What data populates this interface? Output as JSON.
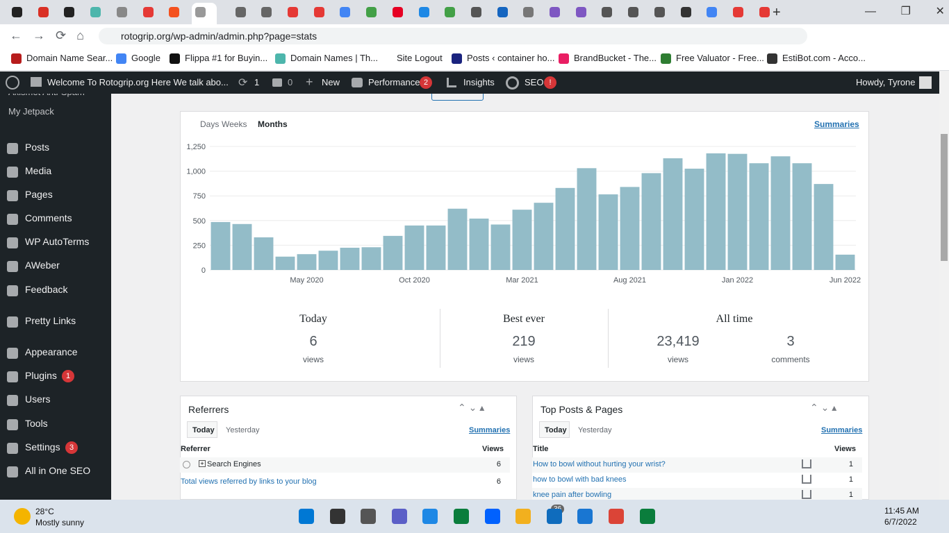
{
  "browser": {
    "url": "rotogrip.org/wp-admin/admin.php?page=stats",
    "bookmarks": [
      "Domain Name Sear...",
      "Google",
      "Flippa #1 for Buyin...",
      "Domain Names | Th...",
      "Site Logout",
      "Posts ‹ container ho...",
      "BrandBucket - The...",
      "Free Valuator - Free...",
      "EstiBot.com - Acco..."
    ]
  },
  "admin_bar": {
    "site": "Welcome To Rotogrip.org Here We talk abo...",
    "updates": "1",
    "comments": "0",
    "new": "New",
    "performance": "Performance",
    "performance_badge": "2",
    "insights": "Insights",
    "seo": "SEO",
    "seo_badge": "!",
    "user": "Howdy, Tyrone"
  },
  "sidebar": {
    "items": [
      {
        "label": "Akismet Anti-Spam"
      },
      {
        "label": "My Jetpack"
      },
      {
        "label": "Posts"
      },
      {
        "label": "Media"
      },
      {
        "label": "Pages"
      },
      {
        "label": "Comments"
      },
      {
        "label": "WP AutoTerms"
      },
      {
        "label": "AWeber"
      },
      {
        "label": "Feedback"
      },
      {
        "label": "Pretty Links"
      },
      {
        "label": "Appearance"
      },
      {
        "label": "Plugins",
        "badge": "1"
      },
      {
        "label": "Users"
      },
      {
        "label": "Tools"
      },
      {
        "label": "Settings",
        "badge": "3"
      },
      {
        "label": "All in One SEO"
      }
    ]
  },
  "stats": {
    "tabs": [
      "Days",
      "Weeks",
      "Months"
    ],
    "summaries": "Summaries",
    "today": {
      "heading": "Today",
      "value": "6",
      "unit": "views"
    },
    "best": {
      "heading": "Best ever",
      "value": "219",
      "unit": "views"
    },
    "all_time": {
      "heading": "All time",
      "views": "23,419",
      "views_unit": "views",
      "comments": "3",
      "comments_unit": "comments"
    }
  },
  "chart_data": {
    "type": "bar",
    "categories": [
      null,
      null,
      null,
      null,
      "May 2020",
      null,
      null,
      null,
      null,
      "Oct 2020",
      null,
      null,
      null,
      null,
      "Mar 2021",
      null,
      null,
      null,
      null,
      "Aug 2021",
      null,
      null,
      null,
      null,
      "Jan 2022",
      null,
      null,
      null,
      null,
      "Jun 2022"
    ],
    "values": [
      485,
      465,
      330,
      135,
      160,
      195,
      225,
      230,
      345,
      450,
      450,
      620,
      520,
      460,
      610,
      680,
      830,
      1030,
      765,
      840,
      980,
      1130,
      1025,
      1180,
      1175,
      1080,
      1150,
      1080,
      870,
      155
    ],
    "color": "#93bcc8",
    "ylim": [
      0,
      1250
    ],
    "yticks": [
      0,
      250,
      500,
      750,
      {
        "value": 1000,
        "label": "1,000"
      },
      {
        "value": 1250,
        "label": "1,250"
      }
    ],
    "grid": true
  },
  "referrers": {
    "title": "Referrers",
    "tabs": [
      "Today",
      "Yesterday"
    ],
    "summaries": "Summaries",
    "columns": [
      "Referrer",
      "Views"
    ],
    "rows": [
      [
        "Search Engines",
        "6"
      ]
    ],
    "total": [
      "Total views referred by links to your blog",
      "6"
    ]
  },
  "top_posts": {
    "title": "Top Posts & Pages",
    "tabs": [
      "Today",
      "Yesterday"
    ],
    "summaries": "Summaries",
    "columns": [
      "Title",
      "Views"
    ],
    "rows": [
      [
        "How to bowl without hurting your wrist?",
        "1"
      ],
      [
        "how to bowl with bad knees",
        "1"
      ],
      [
        "knee pain after bowling",
        "1"
      ]
    ]
  },
  "taskbar": {
    "temp": "28°C",
    "weather": "Mostly sunny",
    "mail_badge": "36",
    "time": "11:45 AM",
    "date": "6/7/2022"
  }
}
